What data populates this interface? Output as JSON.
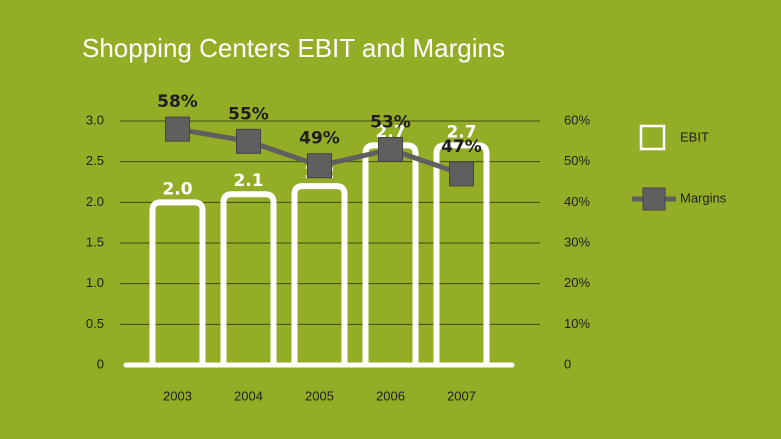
{
  "chart_data": {
    "type": "bar-line",
    "title": "Shopping Centers EBIT and Margins",
    "categories": [
      "2003",
      "2004",
      "2005",
      "2006",
      "2007"
    ],
    "series": [
      {
        "name": "EBIT",
        "color": "#ffffff",
        "values": [
          2.0,
          2.1,
          2.2,
          2.7,
          2.7
        ],
        "value_labels": [
          "2.0",
          "2.1",
          "2.2",
          "2.7",
          "2.7"
        ]
      },
      {
        "name": "Margins",
        "color": "#5f5f5f",
        "axis": "y2",
        "values": [
          58,
          55,
          49,
          53,
          47
        ],
        "value_labels": [
          "58%",
          "55%",
          "49%",
          "53%",
          "47%"
        ]
      }
    ],
    "ylim": [
      0,
      3
    ],
    "yticks": [
      0,
      0.5,
      {
        "value": 1,
        "label": "1.0"
      },
      1.5,
      {
        "value": 2,
        "label": "2.0"
      },
      2.5,
      {
        "value": 3,
        "label": "3.0"
      }
    ],
    "y2lim": [
      0,
      60
    ],
    "y2ticks": [
      0,
      {
        "value": 10,
        "label": "10%"
      },
      {
        "value": 20,
        "label": "20%"
      },
      {
        "value": 30,
        "label": "30%"
      },
      {
        "value": 40,
        "label": "40%"
      },
      {
        "value": 50,
        "label": "50%"
      },
      {
        "value": 60,
        "label": "60%"
      }
    ],
    "grid": true,
    "legend": "right"
  }
}
